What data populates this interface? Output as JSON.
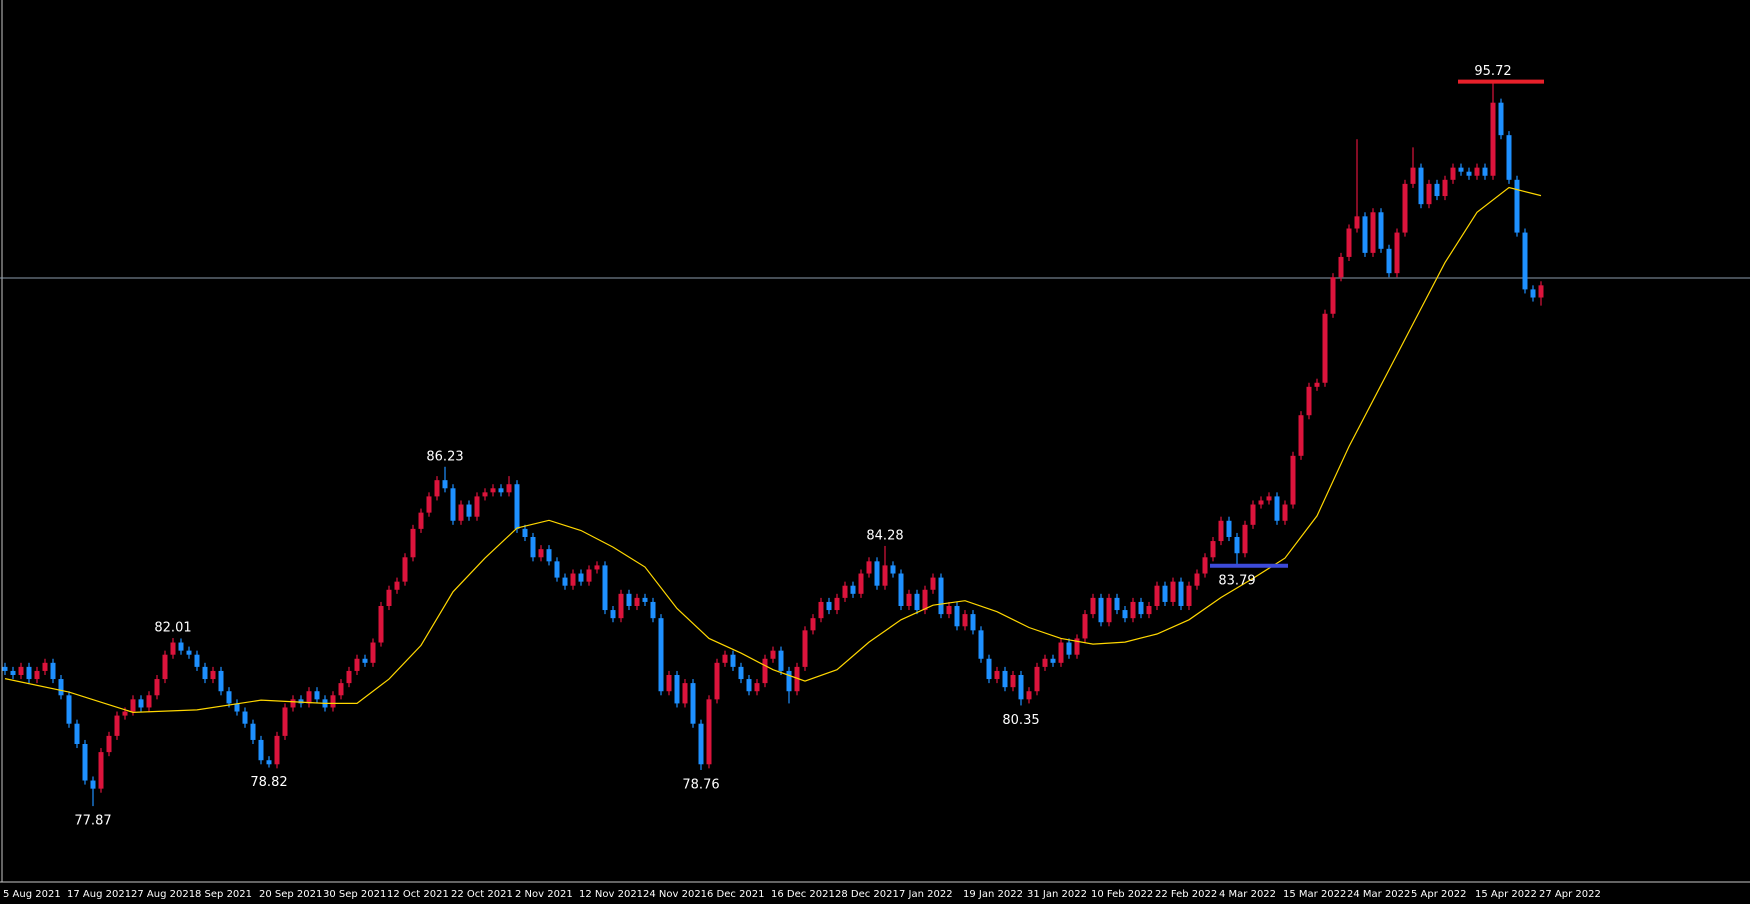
{
  "chart_data": {
    "type": "candlestick",
    "up_color": "#dc143c",
    "down_color": "#1e90ff",
    "ylim": [
      76.0,
      97.73
    ],
    "categories": [
      "5 Aug 2021",
      null,
      null,
      null,
      null,
      null,
      null,
      null,
      "17 Aug 2021",
      null,
      null,
      null,
      null,
      null,
      null,
      null,
      "27 Aug 2021",
      null,
      null,
      null,
      null,
      null,
      null,
      null,
      "8 Sep 2021",
      null,
      null,
      null,
      null,
      null,
      null,
      null,
      "20 Sep 2021",
      null,
      null,
      null,
      null,
      null,
      null,
      null,
      "30 Sep 2021",
      null,
      null,
      null,
      null,
      null,
      null,
      null,
      "12 Oct 2021",
      null,
      null,
      null,
      null,
      null,
      null,
      null,
      "22 Oct 2021",
      null,
      null,
      null,
      null,
      null,
      null,
      null,
      "2 Nov 2021",
      null,
      null,
      null,
      null,
      null,
      null,
      null,
      "12 Nov 2021",
      null,
      null,
      null,
      null,
      null,
      null,
      null,
      "24 Nov 2021",
      null,
      null,
      null,
      null,
      null,
      null,
      null,
      "6 Dec 2021",
      null,
      null,
      null,
      null,
      null,
      null,
      null,
      "16 Dec 2021",
      null,
      null,
      null,
      null,
      null,
      null,
      null,
      "28 Dec 2021",
      null,
      null,
      null,
      null,
      null,
      null,
      null,
      "7 Jan 2022",
      null,
      null,
      null,
      null,
      null,
      null,
      null,
      "19 Jan 2022",
      null,
      null,
      null,
      null,
      null,
      null,
      null,
      "31 Jan 2022",
      null,
      null,
      null,
      null,
      null,
      null,
      null,
      "10 Feb 2022",
      null,
      null,
      null,
      null,
      null,
      null,
      null,
      "22 Feb 2022",
      null,
      null,
      null,
      null,
      null,
      null,
      null,
      "4 Mar 2022",
      null,
      null,
      null,
      null,
      null,
      null,
      null,
      "15 Mar 2022",
      null,
      null,
      null,
      null,
      null,
      null,
      null,
      "24 Mar 2022",
      null,
      null,
      null,
      null,
      null,
      null,
      null,
      "5 Apr 2022",
      null,
      null,
      null,
      null,
      null,
      null,
      null,
      "15 Apr 2022",
      null,
      null,
      null,
      null,
      null,
      null,
      null,
      "27 Apr 2022"
    ],
    "ohlc": [
      [
        81.3,
        81.4,
        81.1,
        81.2
      ],
      [
        81.2,
        81.3,
        81.0,
        81.1
      ],
      [
        81.1,
        81.4,
        81.0,
        81.3
      ],
      [
        81.3,
        81.4,
        80.9,
        81.0
      ],
      [
        81.0,
        81.3,
        80.9,
        81.2
      ],
      [
        81.2,
        81.5,
        81.1,
        81.4
      ],
      [
        81.4,
        81.5,
        80.9,
        81.0
      ],
      [
        81.0,
        81.1,
        80.5,
        80.6
      ],
      [
        80.6,
        80.7,
        79.8,
        79.9
      ],
      [
        79.9,
        80.0,
        79.3,
        79.4
      ],
      [
        79.4,
        79.5,
        78.4,
        78.5
      ],
      [
        78.5,
        78.6,
        77.87,
        78.3
      ],
      [
        78.3,
        79.3,
        78.2,
        79.2
      ],
      [
        79.2,
        79.7,
        79.1,
        79.6
      ],
      [
        79.6,
        80.2,
        79.5,
        80.1
      ],
      [
        80.1,
        80.3,
        80.0,
        80.2
      ],
      [
        80.2,
        80.6,
        80.1,
        80.5
      ],
      [
        80.5,
        80.6,
        80.2,
        80.3
      ],
      [
        80.3,
        80.7,
        80.2,
        80.6
      ],
      [
        80.6,
        81.1,
        80.5,
        81.0
      ],
      [
        81.0,
        81.7,
        80.9,
        81.6
      ],
      [
        81.6,
        82.01,
        81.5,
        81.9
      ],
      [
        81.9,
        82.0,
        81.6,
        81.7
      ],
      [
        81.7,
        81.8,
        81.5,
        81.6
      ],
      [
        81.6,
        81.7,
        81.2,
        81.3
      ],
      [
        81.3,
        81.4,
        80.9,
        81.0
      ],
      [
        81.0,
        81.3,
        80.9,
        81.2
      ],
      [
        81.2,
        81.3,
        80.6,
        80.7
      ],
      [
        80.7,
        80.8,
        80.3,
        80.4
      ],
      [
        80.4,
        80.5,
        80.1,
        80.2
      ],
      [
        80.2,
        80.3,
        79.8,
        79.9
      ],
      [
        79.9,
        80.0,
        79.4,
        79.5
      ],
      [
        79.5,
        79.6,
        78.9,
        79.0
      ],
      [
        79.0,
        79.1,
        78.82,
        78.9
      ],
      [
        78.9,
        79.7,
        78.8,
        79.6
      ],
      [
        79.6,
        80.4,
        79.5,
        80.3
      ],
      [
        80.3,
        80.6,
        80.2,
        80.5
      ],
      [
        80.5,
        80.6,
        80.3,
        80.4
      ],
      [
        80.4,
        80.8,
        80.3,
        80.7
      ],
      [
        80.7,
        80.8,
        80.4,
        80.5
      ],
      [
        80.5,
        80.6,
        80.2,
        80.3
      ],
      [
        80.3,
        80.7,
        80.2,
        80.6
      ],
      [
        80.6,
        81.0,
        80.5,
        80.9
      ],
      [
        80.9,
        81.3,
        80.8,
        81.2
      ],
      [
        81.2,
        81.6,
        81.1,
        81.5
      ],
      [
        81.5,
        81.6,
        81.3,
        81.4
      ],
      [
        81.4,
        82.0,
        81.3,
        81.9
      ],
      [
        81.9,
        82.9,
        81.8,
        82.8
      ],
      [
        82.8,
        83.3,
        82.7,
        83.2
      ],
      [
        83.2,
        83.5,
        83.1,
        83.4
      ],
      [
        83.4,
        84.1,
        83.3,
        84.0
      ],
      [
        84.0,
        84.8,
        83.9,
        84.7
      ],
      [
        84.7,
        85.2,
        84.6,
        85.1
      ],
      [
        85.1,
        85.6,
        85.0,
        85.5
      ],
      [
        85.5,
        86.0,
        85.4,
        85.9
      ],
      [
        85.9,
        86.23,
        85.6,
        85.7
      ],
      [
        85.7,
        85.8,
        84.8,
        84.9
      ],
      [
        84.9,
        85.4,
        84.8,
        85.3
      ],
      [
        85.3,
        85.4,
        84.9,
        85.0
      ],
      [
        85.0,
        85.6,
        84.9,
        85.5
      ],
      [
        85.5,
        85.7,
        85.4,
        85.6
      ],
      [
        85.6,
        85.8,
        85.5,
        85.7
      ],
      [
        85.7,
        85.8,
        85.5,
        85.6
      ],
      [
        85.6,
        86.0,
        85.5,
        85.8
      ],
      [
        85.8,
        85.9,
        84.6,
        84.7
      ],
      [
        84.7,
        84.8,
        84.4,
        84.5
      ],
      [
        84.5,
        84.6,
        83.9,
        84.0
      ],
      [
        84.0,
        84.3,
        83.9,
        84.2
      ],
      [
        84.2,
        84.3,
        83.8,
        83.9
      ],
      [
        83.9,
        84.0,
        83.4,
        83.5
      ],
      [
        83.5,
        83.6,
        83.2,
        83.3
      ],
      [
        83.3,
        83.7,
        83.2,
        83.6
      ],
      [
        83.6,
        83.7,
        83.3,
        83.4
      ],
      [
        83.4,
        83.8,
        83.3,
        83.7
      ],
      [
        83.7,
        83.9,
        83.6,
        83.8
      ],
      [
        83.8,
        83.9,
        82.6,
        82.7
      ],
      [
        82.7,
        82.8,
        82.4,
        82.5
      ],
      [
        82.5,
        83.2,
        82.4,
        83.1
      ],
      [
        83.1,
        83.2,
        82.7,
        82.8
      ],
      [
        82.8,
        83.1,
        82.7,
        83.0
      ],
      [
        83.0,
        83.1,
        82.8,
        82.9
      ],
      [
        82.9,
        83.0,
        82.4,
        82.5
      ],
      [
        82.5,
        82.6,
        80.6,
        80.7
      ],
      [
        80.7,
        81.2,
        80.6,
        81.1
      ],
      [
        81.1,
        81.2,
        80.3,
        80.4
      ],
      [
        80.4,
        81.0,
        80.3,
        80.9
      ],
      [
        80.9,
        81.0,
        79.8,
        79.9
      ],
      [
        79.9,
        80.0,
        78.76,
        78.9
      ],
      [
        78.9,
        80.6,
        78.8,
        80.5
      ],
      [
        80.5,
        81.5,
        80.4,
        81.4
      ],
      [
        81.4,
        81.7,
        81.3,
        81.6
      ],
      [
        81.6,
        81.7,
        81.2,
        81.3
      ],
      [
        81.3,
        81.4,
        80.9,
        81.0
      ],
      [
        81.0,
        81.1,
        80.6,
        80.7
      ],
      [
        80.7,
        81.0,
        80.6,
        80.9
      ],
      [
        80.9,
        81.6,
        80.8,
        81.5
      ],
      [
        81.5,
        81.8,
        81.4,
        81.7
      ],
      [
        81.7,
        81.8,
        81.1,
        81.2
      ],
      [
        81.2,
        81.3,
        80.4,
        80.7
      ],
      [
        80.7,
        81.4,
        80.6,
        81.3
      ],
      [
        81.3,
        82.3,
        81.2,
        82.2
      ],
      [
        82.2,
        82.6,
        82.1,
        82.5
      ],
      [
        82.5,
        83.0,
        82.4,
        82.9
      ],
      [
        82.9,
        83.0,
        82.6,
        82.7
      ],
      [
        82.7,
        83.1,
        82.6,
        83.0
      ],
      [
        83.0,
        83.4,
        82.9,
        83.3
      ],
      [
        83.3,
        83.4,
        83.0,
        83.1
      ],
      [
        83.1,
        83.7,
        83.0,
        83.6
      ],
      [
        83.6,
        84.0,
        83.5,
        83.9
      ],
      [
        83.9,
        84.0,
        83.2,
        83.3
      ],
      [
        83.3,
        84.28,
        83.2,
        83.8
      ],
      [
        83.8,
        83.9,
        83.5,
        83.6
      ],
      [
        83.6,
        83.7,
        82.7,
        82.8
      ],
      [
        82.8,
        83.2,
        82.7,
        83.1
      ],
      [
        83.1,
        83.2,
        82.6,
        82.7
      ],
      [
        82.7,
        83.3,
        82.6,
        83.2
      ],
      [
        83.2,
        83.6,
        83.1,
        83.5
      ],
      [
        83.5,
        83.6,
        82.5,
        82.6
      ],
      [
        82.6,
        82.9,
        82.5,
        82.8
      ],
      [
        82.8,
        82.9,
        82.2,
        82.3
      ],
      [
        82.3,
        82.7,
        82.2,
        82.6
      ],
      [
        82.6,
        82.7,
        82.1,
        82.2
      ],
      [
        82.2,
        82.3,
        81.4,
        81.5
      ],
      [
        81.5,
        81.6,
        80.9,
        81.0
      ],
      [
        81.0,
        81.3,
        80.9,
        81.2
      ],
      [
        81.2,
        81.3,
        80.7,
        80.8
      ],
      [
        80.8,
        81.2,
        80.7,
        81.1
      ],
      [
        81.1,
        81.2,
        80.35,
        80.5
      ],
      [
        80.5,
        80.8,
        80.4,
        80.7
      ],
      [
        80.7,
        81.4,
        80.6,
        81.3
      ],
      [
        81.3,
        81.6,
        81.2,
        81.5
      ],
      [
        81.5,
        81.6,
        81.3,
        81.4
      ],
      [
        81.4,
        82.0,
        81.3,
        81.9
      ],
      [
        81.9,
        82.0,
        81.5,
        81.6
      ],
      [
        81.6,
        82.1,
        81.5,
        82.0
      ],
      [
        82.0,
        82.7,
        81.9,
        82.6
      ],
      [
        82.6,
        83.1,
        82.5,
        83.0
      ],
      [
        83.0,
        83.1,
        82.3,
        82.4
      ],
      [
        82.4,
        83.1,
        82.3,
        83.0
      ],
      [
        83.0,
        83.1,
        82.6,
        82.7
      ],
      [
        82.7,
        82.8,
        82.4,
        82.5
      ],
      [
        82.5,
        83.0,
        82.4,
        82.9
      ],
      [
        82.9,
        83.0,
        82.5,
        82.6
      ],
      [
        82.6,
        82.9,
        82.5,
        82.8
      ],
      [
        82.8,
        83.4,
        82.7,
        83.3
      ],
      [
        83.3,
        83.4,
        82.8,
        82.9
      ],
      [
        82.9,
        83.5,
        82.8,
        83.4
      ],
      [
        83.4,
        83.5,
        82.7,
        82.8
      ],
      [
        82.8,
        83.4,
        82.7,
        83.3
      ],
      [
        83.3,
        83.7,
        83.2,
        83.6
      ],
      [
        83.6,
        84.1,
        83.5,
        84.0
      ],
      [
        84.0,
        84.5,
        83.9,
        84.4
      ],
      [
        84.4,
        85.0,
        84.3,
        84.9
      ],
      [
        84.9,
        85.0,
        84.4,
        84.5
      ],
      [
        84.5,
        84.6,
        83.79,
        84.1
      ],
      [
        84.1,
        84.9,
        84.0,
        84.8
      ],
      [
        84.8,
        85.4,
        84.7,
        85.3
      ],
      [
        85.3,
        85.5,
        85.2,
        85.4
      ],
      [
        85.4,
        85.6,
        85.3,
        85.5
      ],
      [
        85.5,
        85.6,
        84.8,
        84.9
      ],
      [
        84.9,
        85.4,
        84.8,
        85.3
      ],
      [
        85.3,
        86.6,
        85.2,
        86.5
      ],
      [
        86.5,
        87.6,
        86.4,
        87.5
      ],
      [
        87.5,
        88.3,
        87.4,
        88.2
      ],
      [
        88.2,
        88.4,
        88.1,
        88.3
      ],
      [
        88.3,
        90.1,
        88.2,
        90.0
      ],
      [
        90.0,
        91.0,
        89.9,
        90.9
      ],
      [
        90.9,
        91.5,
        90.8,
        91.4
      ],
      [
        91.4,
        92.2,
        91.3,
        92.1
      ],
      [
        92.1,
        94.3,
        92.0,
        92.4
      ],
      [
        92.4,
        92.5,
        91.4,
        91.5
      ],
      [
        91.5,
        92.6,
        91.4,
        92.5
      ],
      [
        92.5,
        92.6,
        91.5,
        91.6
      ],
      [
        91.6,
        91.7,
        90.9,
        91.0
      ],
      [
        91.0,
        92.1,
        90.9,
        92.0
      ],
      [
        92.0,
        93.3,
        91.9,
        93.2
      ],
      [
        93.2,
        94.1,
        93.1,
        93.6
      ],
      [
        93.6,
        93.7,
        92.6,
        92.7
      ],
      [
        92.7,
        93.3,
        92.6,
        93.2
      ],
      [
        93.2,
        93.3,
        92.8,
        92.9
      ],
      [
        92.9,
        93.4,
        92.8,
        93.3
      ],
      [
        93.3,
        93.7,
        93.2,
        93.6
      ],
      [
        93.6,
        93.7,
        93.4,
        93.5
      ],
      [
        93.5,
        93.6,
        93.3,
        93.4
      ],
      [
        93.4,
        93.7,
        93.3,
        93.6
      ],
      [
        93.6,
        93.7,
        93.3,
        93.4
      ],
      [
        93.4,
        95.72,
        93.3,
        95.2
      ],
      [
        95.2,
        95.3,
        94.3,
        94.4
      ],
      [
        94.4,
        94.5,
        93.2,
        93.3
      ],
      [
        93.3,
        93.4,
        91.9,
        92.0
      ],
      [
        92.0,
        92.1,
        90.5,
        90.6
      ],
      [
        90.6,
        90.7,
        90.3,
        90.4
      ],
      [
        90.4,
        90.8,
        90.2,
        90.7
      ]
    ],
    "ma": {
      "color": "#ffd700",
      "x": [
        0,
        8,
        16,
        24,
        32,
        40,
        44,
        48,
        52,
        56,
        60,
        64,
        68,
        72,
        76,
        80,
        84,
        88,
        92,
        96,
        100,
        104,
        108,
        112,
        116,
        120,
        124,
        128,
        132,
        136,
        140,
        144,
        148,
        152,
        156,
        160,
        164,
        168,
        172,
        176,
        180,
        184,
        188,
        192
      ],
      "values": [
        81.01,
        80.68,
        80.18,
        80.24,
        80.48,
        80.4,
        80.4,
        81.0,
        81.83,
        83.15,
        83.98,
        84.72,
        84.91,
        84.66,
        84.25,
        83.76,
        82.74,
        82.0,
        81.64,
        81.23,
        80.95,
        81.23,
        81.91,
        82.46,
        82.82,
        82.93,
        82.66,
        82.27,
        82.0,
        81.86,
        81.91,
        82.11,
        82.46,
        83.01,
        83.48,
        83.98,
        85.02,
        86.73,
        88.24,
        89.75,
        91.26,
        92.5,
        93.11,
        92.91
      ]
    },
    "hline": {
      "value": 90.88,
      "color": "#8c9bab"
    },
    "annotations": [
      {
        "index": 11,
        "value": 77.87,
        "side": "below"
      },
      {
        "index": 21,
        "value": 82.01,
        "side": "above"
      },
      {
        "index": 33,
        "value": 78.82,
        "side": "below"
      },
      {
        "index": 55,
        "value": 86.23,
        "side": "above"
      },
      {
        "index": 87,
        "value": 78.76,
        "side": "below"
      },
      {
        "index": 110,
        "value": 84.28,
        "side": "above"
      },
      {
        "index": 127,
        "value": 80.35,
        "side": "below"
      },
      {
        "index": 154,
        "value": 83.79,
        "side": "below",
        "line": {
          "from": 151,
          "to": 160,
          "color": "#3d4bd9"
        }
      },
      {
        "index": 186,
        "value": 95.72,
        "side": "above",
        "line": {
          "from": 182,
          "to": 192,
          "color": "#e8202a"
        }
      }
    ]
  }
}
